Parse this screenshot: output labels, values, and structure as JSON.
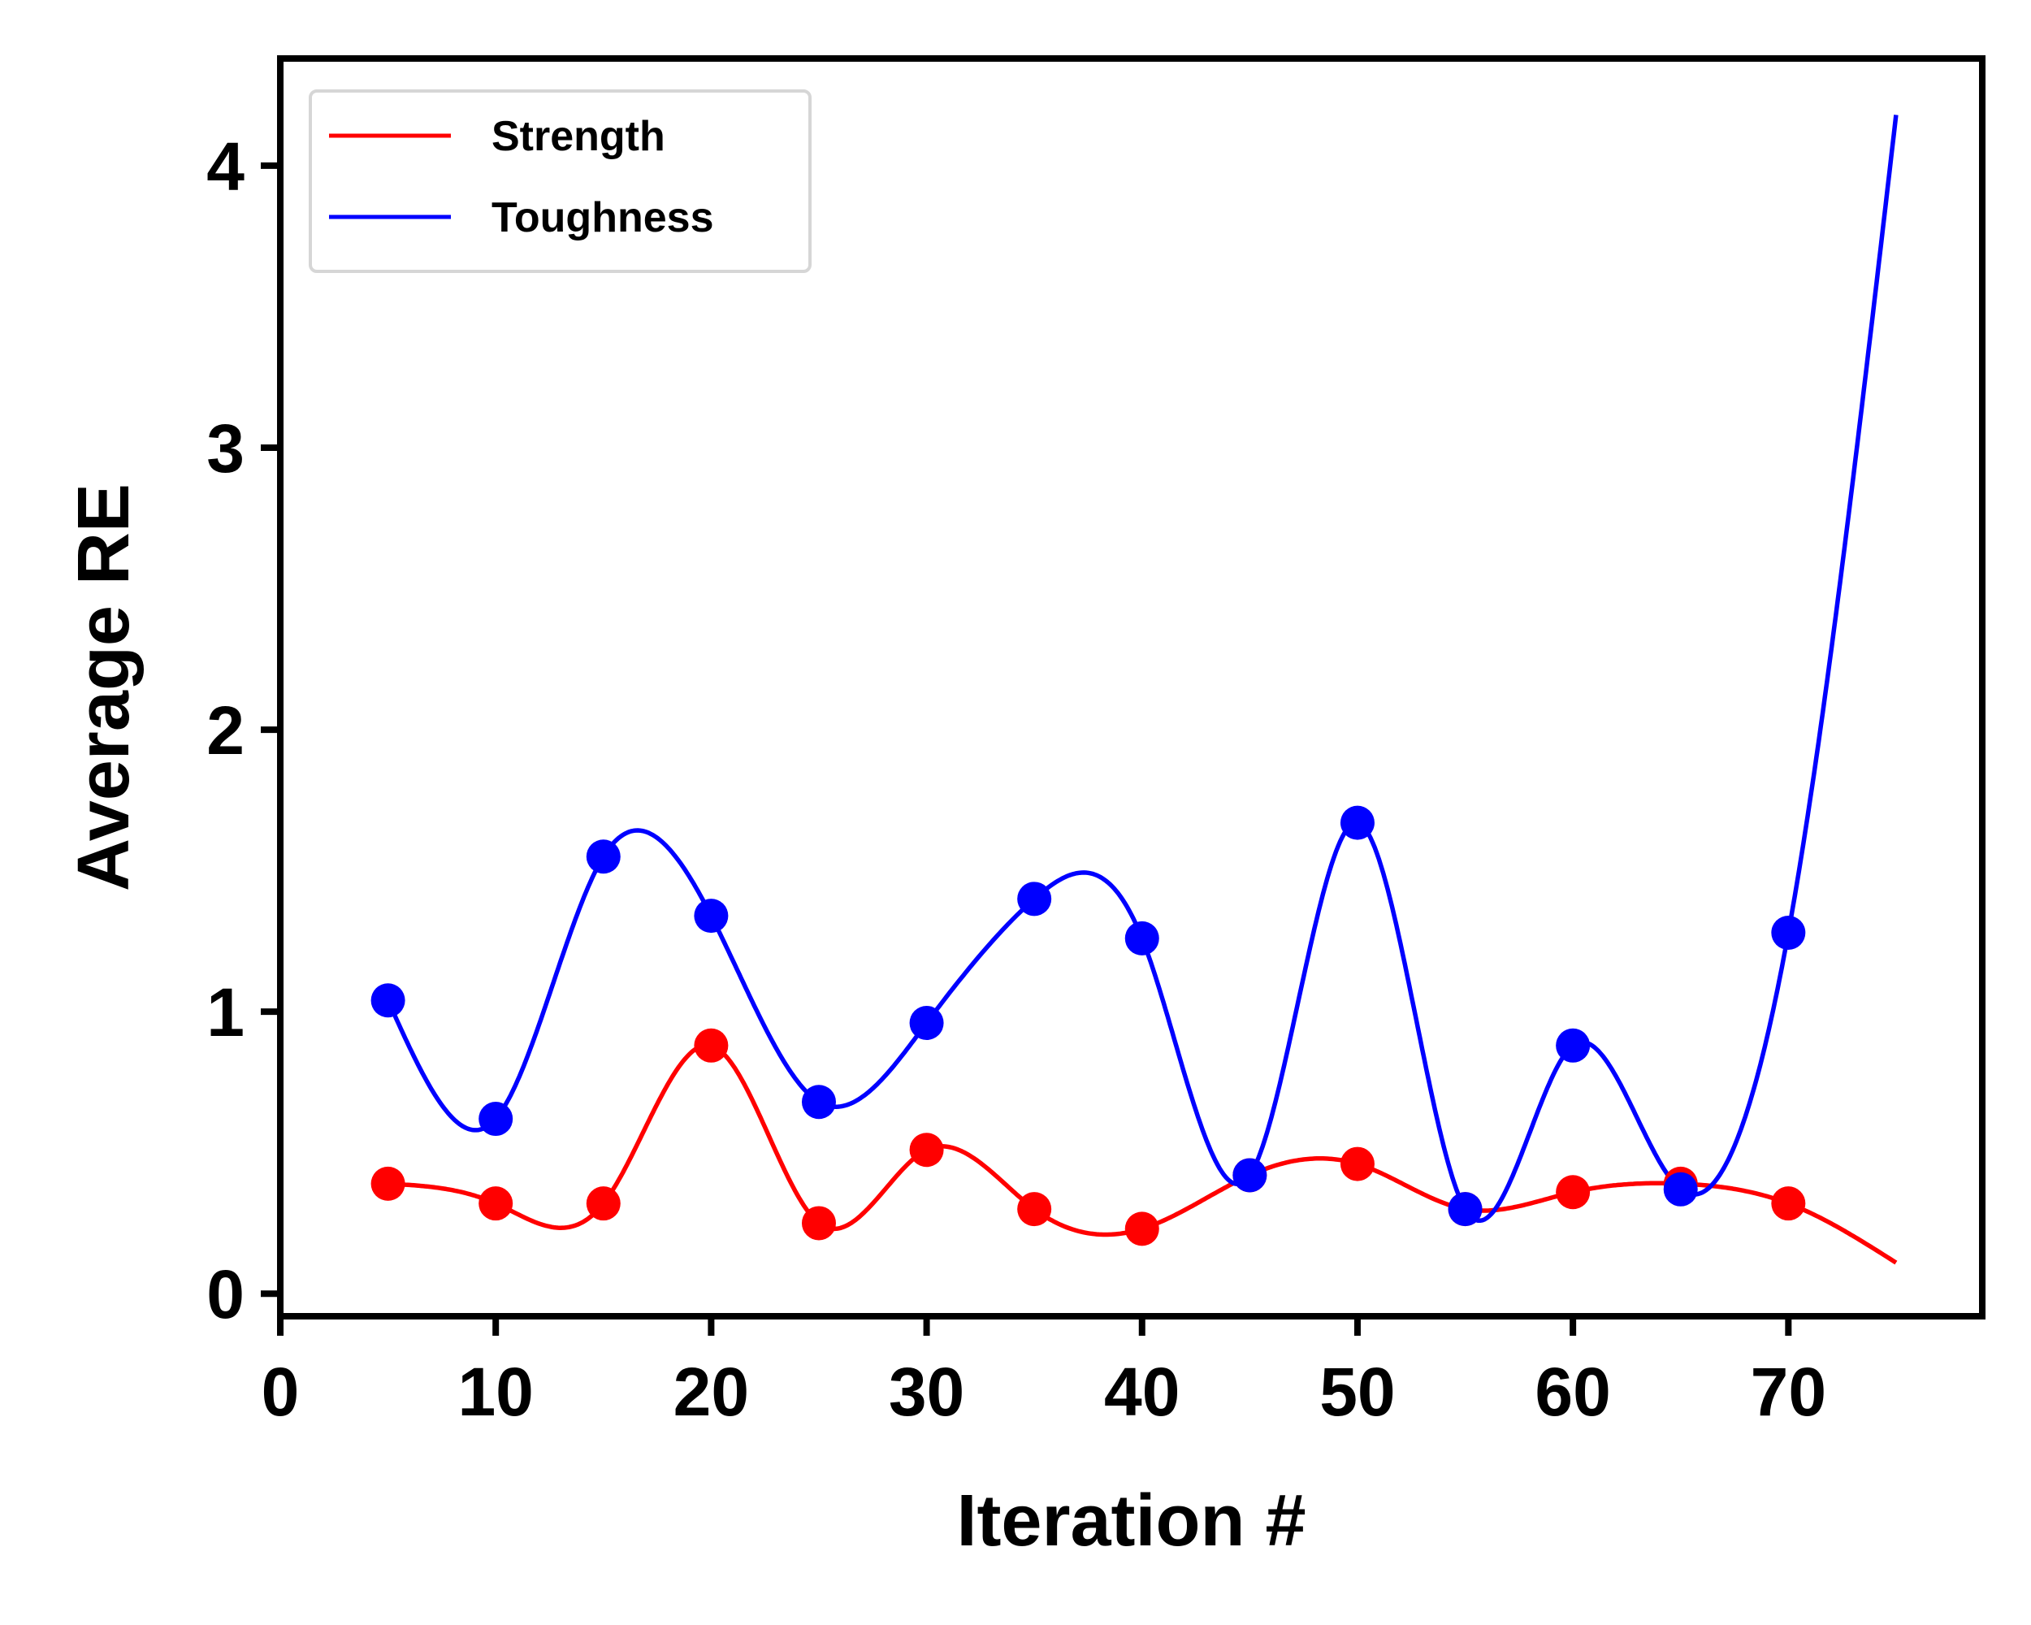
{
  "chart_data": {
    "type": "line",
    "title": "",
    "xlabel": "Iteration #",
    "ylabel": "Average RE",
    "xlim": [
      0,
      79
    ],
    "ylim": [
      -0.08,
      4.38
    ],
    "xticks": [
      0,
      10,
      20,
      30,
      40,
      50,
      60,
      70
    ],
    "yticks": [
      0,
      1,
      2,
      3,
      4
    ],
    "grid": false,
    "legend_position": "top-left",
    "curve_x_end": 75,
    "series": [
      {
        "name": "Strength",
        "color": "#ff0000",
        "x": [
          5,
          10,
          15,
          20,
          25,
          30,
          35,
          40,
          45,
          50,
          55,
          60,
          65,
          70
        ],
        "values": [
          0.39,
          0.32,
          0.32,
          0.88,
          0.25,
          0.51,
          0.3,
          0.23,
          0.42,
          0.46,
          0.3,
          0.36,
          0.39,
          0.32
        ],
        "curve_end": 0.11
      },
      {
        "name": "Toughness",
        "color": "#0000ff",
        "x": [
          5,
          10,
          15,
          20,
          25,
          30,
          35,
          40,
          45,
          50,
          55,
          60,
          65,
          70
        ],
        "values": [
          1.04,
          0.62,
          1.55,
          1.34,
          0.68,
          0.96,
          1.4,
          1.26,
          0.42,
          1.67,
          0.3,
          0.88,
          0.37,
          1.28
        ],
        "curve_end": 4.18
      }
    ]
  }
}
